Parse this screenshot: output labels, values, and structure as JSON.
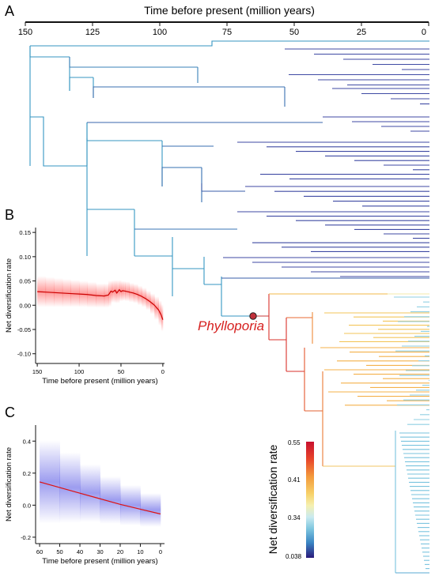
{
  "panels": {
    "a": {
      "letter": "A",
      "axis_title": "Time before present (million years)",
      "ticks": [
        150,
        125,
        100,
        75,
        50,
        25,
        0
      ]
    },
    "b": {
      "letter": "B"
    },
    "c": {
      "letter": "C"
    }
  },
  "taxon_label": "Phylloporia",
  "colorbar": {
    "title": "Net diversification rate",
    "ticks": [
      "0.55",
      "0.41",
      "0.34",
      "0.038"
    ],
    "stops": [
      "#c8102e",
      "#e8452a",
      "#f39a3c",
      "#f7d26a",
      "#f5f0b0",
      "#c9eaf0",
      "#7ec6df",
      "#3a86c4",
      "#2e3f9e",
      "#2a1a7a"
    ]
  },
  "chart_data": [
    {
      "type": "tree",
      "xlabel": "Time before present (million years)",
      "xlim": [
        150,
        0
      ],
      "highlighted_clade": "Phylloporia",
      "highlight_node_age": 61,
      "rate_colorbar": [
        0.038,
        0.34,
        0.41,
        0.55
      ]
    },
    {
      "type": "line",
      "xlabel": "Time before present (million years)",
      "ylabel": "Net diversification rate",
      "xlim": [
        152,
        -2
      ],
      "ylim": [
        -0.12,
        0.16
      ],
      "x_ticks": [
        150,
        100,
        50,
        0
      ],
      "y_ticks": [
        0.15,
        0.1,
        0.05,
        0.0,
        -0.05,
        -0.1
      ],
      "y_tick_labels": [
        "0.15",
        "0.10",
        "0.05",
        "0.00",
        "-0.05",
        "-0.10"
      ],
      "series": [
        {
          "color": "#cc0000",
          "x": [
            150,
            140,
            130,
            120,
            110,
            100,
            90,
            80,
            70,
            65,
            62,
            60,
            57,
            55,
            52,
            50,
            48,
            45,
            40,
            35,
            30,
            25,
            20,
            15,
            10,
            5,
            2,
            0
          ],
          "values": [
            0.028,
            0.027,
            0.026,
            0.025,
            0.024,
            0.023,
            0.022,
            0.02,
            0.019,
            0.021,
            0.029,
            0.027,
            0.031,
            0.025,
            0.032,
            0.028,
            0.03,
            0.029,
            0.027,
            0.025,
            0.022,
            0.018,
            0.013,
            0.007,
            0.0,
            -0.01,
            -0.02,
            -0.03
          ],
          "band_halfwidth": [
            0.032,
            0.031,
            0.03,
            0.029,
            0.028,
            0.027,
            0.026,
            0.025,
            0.024,
            0.024,
            0.022,
            0.022,
            0.021,
            0.021,
            0.02,
            0.02,
            0.02,
            0.02,
            0.019,
            0.019,
            0.018,
            0.018,
            0.017,
            0.017,
            0.018,
            0.02,
            0.022,
            0.024
          ]
        }
      ]
    },
    {
      "type": "line",
      "xlabel": "Time before present (million years)",
      "ylabel": "Net diversification rate",
      "xlim": [
        62,
        -2
      ],
      "ylim": [
        -0.24,
        0.5
      ],
      "x_ticks": [
        60,
        50,
        40,
        30,
        20,
        10,
        0
      ],
      "y_ticks": [
        0.4,
        0.2,
        0.0,
        -0.2
      ],
      "y_tick_labels": [
        "0.4",
        "0.2",
        "0.0",
        "-0.2"
      ],
      "series": [
        {
          "color": "#dd1111",
          "x": [
            60,
            50,
            40,
            30,
            20,
            10,
            0
          ],
          "values": [
            0.145,
            0.11,
            0.075,
            0.04,
            0.005,
            -0.025,
            -0.055
          ],
          "band_halfwidth": [
            0.26,
            0.22,
            0.18,
            0.14,
            0.12,
            0.1,
            0.08
          ]
        }
      ]
    }
  ]
}
